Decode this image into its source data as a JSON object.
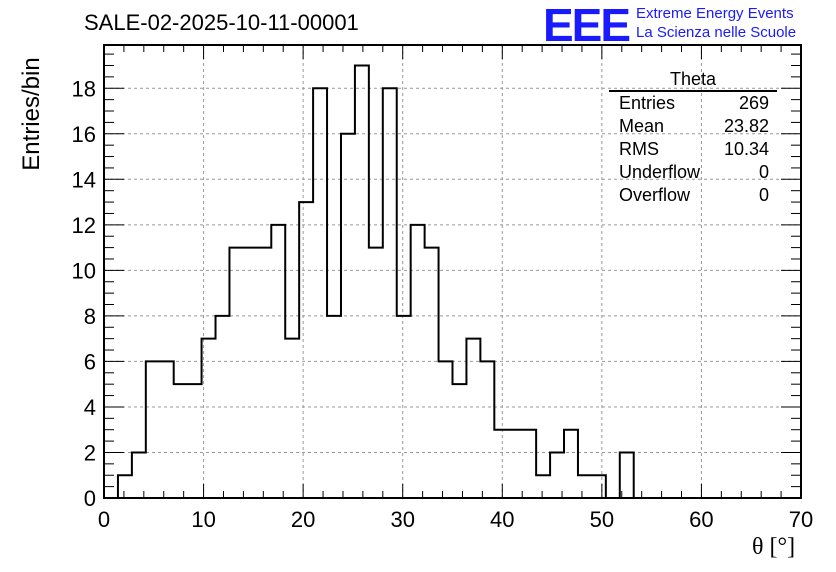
{
  "title": "SALE-02-2025-10-11-00001",
  "logo": {
    "mark": "EEE",
    "line1": "Extreme Energy Events",
    "line2": "La Scienza nelle Scuole"
  },
  "stats": {
    "name": "Theta",
    "rows": [
      {
        "label": "Entries",
        "value": "269"
      },
      {
        "label": "Mean",
        "value": "23.82"
      },
      {
        "label": "RMS",
        "value": "10.34"
      },
      {
        "label": "Underflow",
        "value": "0"
      },
      {
        "label": "Overflow",
        "value": "0"
      }
    ]
  },
  "chart_data": {
    "type": "bar",
    "subtype": "step-histogram",
    "xlabel": "θ [°]",
    "ylabel": "Entries/bin",
    "xlim": [
      0,
      70
    ],
    "ylim": [
      0,
      19.9
    ],
    "grid": true,
    "bin_width": 1.4,
    "bin_start": 1.4,
    "values": [
      1,
      2,
      6,
      6,
      5,
      5,
      7,
      8,
      11,
      11,
      11,
      12,
      7,
      13,
      18,
      8,
      16,
      19,
      11,
      18,
      8,
      12,
      11,
      6,
      5,
      7,
      6,
      3,
      3,
      3,
      1,
      2,
      3,
      1,
      1,
      0,
      2
    ],
    "x_ticks": [
      0,
      10,
      20,
      30,
      40,
      50,
      60,
      70
    ],
    "y_ticks": [
      0,
      2,
      4,
      6,
      8,
      10,
      12,
      14,
      16,
      18
    ]
  }
}
